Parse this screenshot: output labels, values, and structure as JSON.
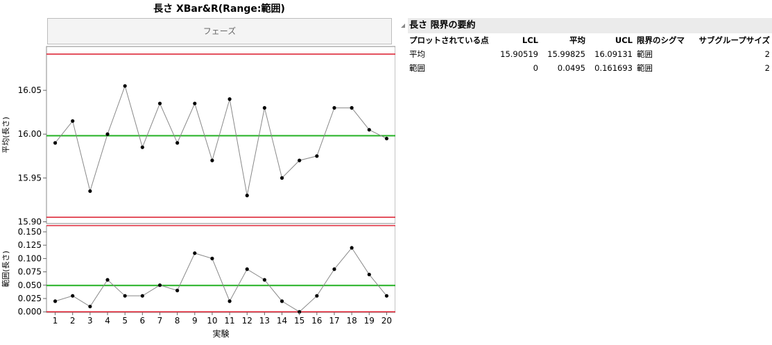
{
  "chart_title": "長さ  XBar&R(Range:範囲)",
  "phase_label": "フェーズ",
  "summary": {
    "title": "長さ 限界の要約",
    "columns": [
      "プロットされている点",
      "LCL",
      "平均",
      "UCL",
      "限界のシグマ",
      "サブグループサイズ"
    ],
    "rows": [
      [
        "平均",
        "15.90519",
        "15.99825",
        "16.09131",
        "範囲",
        "2"
      ],
      [
        "範囲",
        "0",
        "0.0495",
        "0.161693",
        "範囲",
        "2"
      ]
    ]
  },
  "colors": {
    "center_line": "#22b022",
    "limit_line": "#dd2a3a",
    "data_line": "#888888",
    "point": "#000000"
  },
  "chart_data": [
    {
      "type": "line",
      "ylabel": "平均(長さ)",
      "x": [
        1,
        2,
        3,
        4,
        5,
        6,
        7,
        8,
        9,
        10,
        11,
        12,
        13,
        14,
        15,
        16,
        17,
        18,
        19,
        20
      ],
      "values": [
        15.99,
        16.015,
        15.935,
        16.0,
        16.055,
        15.985,
        16.035,
        15.99,
        16.035,
        15.97,
        16.04,
        15.93,
        16.03,
        15.95,
        15.97,
        15.975,
        16.03,
        16.03,
        16.005,
        15.995
      ],
      "center": 15.99825,
      "lcl": 15.90519,
      "ucl": 16.09131,
      "ylim": [
        15.898,
        16.1
      ],
      "yticks": [
        "15.90",
        "15.95",
        "16.00",
        "16.05"
      ]
    },
    {
      "type": "line",
      "ylabel": "範囲(長さ)",
      "xlabel": "実験",
      "x": [
        1,
        2,
        3,
        4,
        5,
        6,
        7,
        8,
        9,
        10,
        11,
        12,
        13,
        14,
        15,
        16,
        17,
        18,
        19,
        20
      ],
      "values": [
        0.02,
        0.03,
        0.01,
        0.06,
        0.03,
        0.03,
        0.05,
        0.04,
        0.11,
        0.1,
        0.02,
        0.08,
        0.06,
        0.02,
        0.0,
        0.03,
        0.08,
        0.12,
        0.07,
        0.03
      ],
      "center": 0.0495,
      "lcl": 0,
      "ucl": 0.161693,
      "ylim": [
        -0.001,
        0.161693
      ],
      "yticks": [
        "0.000",
        "0.025",
        "0.050",
        "0.075",
        "0.100",
        "0.125",
        "0.150"
      ],
      "xticks": [
        "1",
        "2",
        "3",
        "4",
        "5",
        "6",
        "7",
        "8",
        "9",
        "10",
        "11",
        "12",
        "13",
        "14",
        "15",
        "16",
        "17",
        "18",
        "19",
        "20"
      ]
    }
  ]
}
